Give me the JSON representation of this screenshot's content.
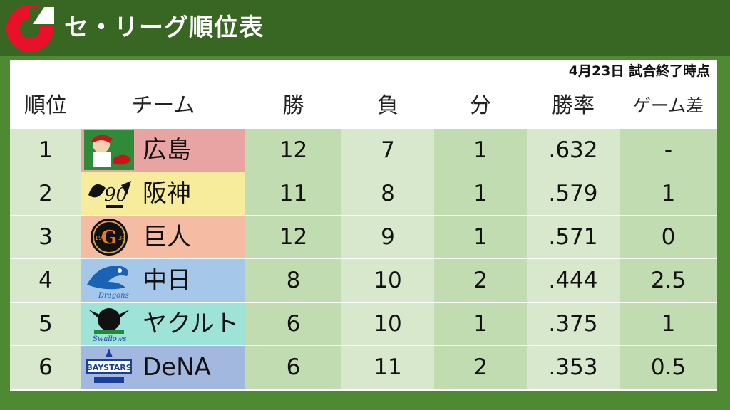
{
  "header": {
    "title": "セ・リーグ順位表"
  },
  "date_note": "4月23日  試合終了時点",
  "columns": {
    "rank": "順位",
    "team": "チーム",
    "wins": "勝",
    "losses": "負",
    "draws": "分",
    "pct": "勝率",
    "gb": "ゲーム差"
  },
  "rows": [
    {
      "rank": "1",
      "team": "広島",
      "wins": "12",
      "losses": "7",
      "draws": "1",
      "pct": ".632",
      "gb": "-",
      "team_color": "#e8a3a3",
      "logo": "carp-logo"
    },
    {
      "rank": "2",
      "team": "阪神",
      "wins": "11",
      "losses": "8",
      "draws": "1",
      "pct": ".579",
      "gb": "1",
      "team_color": "#f7ec9c",
      "logo": "tigers-logo"
    },
    {
      "rank": "3",
      "team": "巨人",
      "wins": "12",
      "losses": "9",
      "draws": "1",
      "pct": ".571",
      "gb": "0",
      "team_color": "#f6bca3",
      "logo": "giants-logo"
    },
    {
      "rank": "4",
      "team": "中日",
      "wins": "8",
      "losses": "10",
      "draws": "2",
      "pct": ".444",
      "gb": "2.5",
      "team_color": "#a5c8ea",
      "logo": "dragons-logo"
    },
    {
      "rank": "5",
      "team": "ヤクルト",
      "wins": "6",
      "losses": "10",
      "draws": "1",
      "pct": ".375",
      "gb": "1",
      "team_color": "#9ee3d8",
      "logo": "swallows-logo"
    },
    {
      "rank": "6",
      "team": "DeNA",
      "wins": "6",
      "losses": "11",
      "draws": "2",
      "pct": ".353",
      "gb": "0.5",
      "team_color": "#a3b8df",
      "logo": "baystars-logo"
    }
  ],
  "colors": {
    "header_bg": "#386623",
    "page_bg": "#4d8a32",
    "row_light": "#d7e8cd",
    "row_mid": "#c2dcb1"
  }
}
